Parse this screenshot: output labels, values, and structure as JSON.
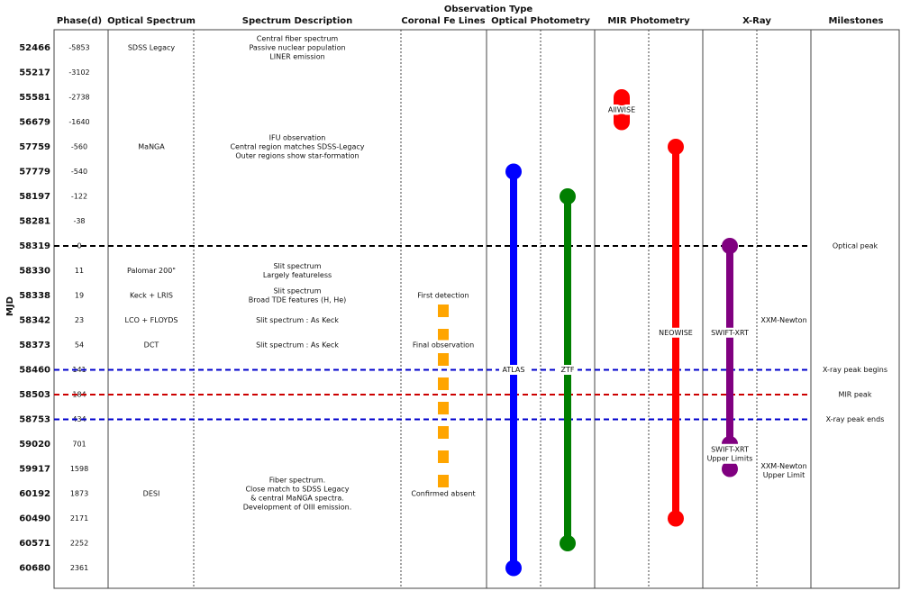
{
  "chart_data": {
    "type": "timeline",
    "header": {
      "group_title": "Observation Type",
      "columns": {
        "phase": "Phase(d)",
        "optical_spectrum": "Optical Spectrum",
        "spectrum_description": "Spectrum Description",
        "coronal": "Coronal Fe Lines",
        "optical_photometry": "Optical Photometry",
        "mir_photometry": "MIR Photometry",
        "xray": "X-Ray",
        "milestones": "Milestones"
      }
    },
    "ylabel": "MJD",
    "rows": [
      {
        "mjd": "52466",
        "phase": "-5853",
        "spectrum": "SDSS Legacy",
        "description": [
          "Central fiber spectrum",
          "Passive nuclear population",
          "LINER emission"
        ],
        "coronal": "",
        "milestone": ""
      },
      {
        "mjd": "55217",
        "phase": "-3102",
        "spectrum": "",
        "description": [],
        "coronal": "",
        "milestone": ""
      },
      {
        "mjd": "55581",
        "phase": "-2738",
        "spectrum": "",
        "description": [],
        "coronal": "",
        "milestone": ""
      },
      {
        "mjd": "56679",
        "phase": "-1640",
        "spectrum": "",
        "description": [],
        "coronal": "",
        "milestone": ""
      },
      {
        "mjd": "57759",
        "phase": "-560",
        "spectrum": "MaNGA",
        "description": [
          "IFU observation",
          "Central region matches SDSS-Legacy",
          "Outer regions show star-formation"
        ],
        "coronal": "",
        "milestone": ""
      },
      {
        "mjd": "57779",
        "phase": "-540",
        "spectrum": "",
        "description": [],
        "coronal": "",
        "milestone": ""
      },
      {
        "mjd": "58197",
        "phase": "-122",
        "spectrum": "",
        "description": [],
        "coronal": "",
        "milestone": ""
      },
      {
        "mjd": "58281",
        "phase": "-38",
        "spectrum": "",
        "description": [],
        "coronal": "",
        "milestone": ""
      },
      {
        "mjd": "58319",
        "phase": "0",
        "spectrum": "",
        "description": [],
        "coronal": "",
        "milestone": "Optical peak"
      },
      {
        "mjd": "58330",
        "phase": "11",
        "spectrum": "Palomar 200\"",
        "description": [
          "Slit spectrum",
          "Largely featureless"
        ],
        "coronal": "",
        "milestone": ""
      },
      {
        "mjd": "58338",
        "phase": "19",
        "spectrum": "Keck + LRIS",
        "description": [
          "Slit spectrum",
          "Broad TDE features (H, He)"
        ],
        "coronal": "First detection",
        "milestone": ""
      },
      {
        "mjd": "58342",
        "phase": "23",
        "spectrum": "LCO + FLOYDS",
        "description": [
          "Slit spectrum : As Keck"
        ],
        "coronal": "",
        "milestone": ""
      },
      {
        "mjd": "58373",
        "phase": "54",
        "spectrum": "DCT",
        "description": [
          "Slit spectrum : As Keck"
        ],
        "coronal": "Final observation",
        "milestone": ""
      },
      {
        "mjd": "58460",
        "phase": "141",
        "spectrum": "",
        "description": [],
        "coronal": "",
        "milestone": "X-ray peak begins"
      },
      {
        "mjd": "58503",
        "phase": "184",
        "spectrum": "",
        "description": [],
        "coronal": "",
        "milestone": "MIR peak"
      },
      {
        "mjd": "58753",
        "phase": "434",
        "spectrum": "",
        "description": [],
        "coronal": "",
        "milestone": "X-ray peak ends"
      },
      {
        "mjd": "59020",
        "phase": "701",
        "spectrum": "",
        "description": [],
        "coronal": "",
        "milestone": ""
      },
      {
        "mjd": "59917",
        "phase": "1598",
        "spectrum": "",
        "description": [],
        "coronal": "",
        "milestone": ""
      },
      {
        "mjd": "60192",
        "phase": "1873",
        "spectrum": "DESI",
        "description": [
          "Fiber spectrum.",
          "Close match to SDSS Legacy",
          "& central MaNGA spectra.",
          "Development of OIII emission."
        ],
        "coronal": "Confirmed absent",
        "milestone": ""
      },
      {
        "mjd": "60490",
        "phase": "2171",
        "spectrum": "",
        "description": [],
        "coronal": "",
        "milestone": ""
      },
      {
        "mjd": "60571",
        "phase": "2252",
        "spectrum": "",
        "description": [],
        "coronal": "",
        "milestone": ""
      },
      {
        "mjd": "60680",
        "phase": "2361",
        "spectrum": "",
        "description": [],
        "coronal": "",
        "milestone": ""
      }
    ],
    "series": [
      {
        "name": "AllWISE",
        "column": "mir_photometry",
        "start_mjd": "55581",
        "end_mjd": "56679",
        "color": "#ff0000",
        "style": "gap"
      },
      {
        "name": "NEOWISE",
        "column": "mir_photometry",
        "start_mjd": "57759",
        "end_mjd": "60490",
        "color": "#ff0000",
        "style": "solid"
      },
      {
        "name": "ATLAS",
        "column": "optical_photometry",
        "start_mjd": "57779",
        "end_mjd": "60680",
        "color": "#0000ff",
        "style": "solid"
      },
      {
        "name": "ZTF",
        "column": "optical_photometry",
        "start_mjd": "58197",
        "end_mjd": "60571",
        "color": "#007f00",
        "style": "solid"
      },
      {
        "name": "SWIFT-XRT",
        "column": "xray",
        "start_mjd": "58319",
        "end_mjd": "59020",
        "color": "#800080",
        "style": "solid"
      },
      {
        "name": "SWIFT-XRT Upper Limits",
        "column": "xray",
        "start_mjd": "59020",
        "end_mjd": "59917",
        "color": "#800080",
        "style": "solid"
      },
      {
        "name": "Coronal Fe Lines",
        "column": "coronal",
        "start_mjd": "58338",
        "end_mjd": "60192",
        "color": "#ffa500",
        "style": "dashed"
      }
    ],
    "series_labels": {
      "allwise": "AllWISE",
      "neowise": "NEOWISE",
      "atlas": "ATLAS",
      "ztf": "ZTF",
      "swift": "SWIFT-XRT",
      "swift_ul": [
        "SWIFT-XRT",
        "Upper Limits"
      ],
      "xmm": "XXM-Newton",
      "xmm_ul": [
        "XXM-Newton",
        "Upper Limit"
      ]
    },
    "reference_lines": [
      {
        "mjd": "58319",
        "label": "Optical peak",
        "color": "#000000"
      },
      {
        "mjd": "58460",
        "label": "X-ray peak begins",
        "color": "#0000cc"
      },
      {
        "mjd": "58503",
        "label": "MIR peak",
        "color": "#cc0000"
      },
      {
        "mjd": "58753",
        "label": "X-ray peak ends",
        "color": "#0000cc"
      }
    ]
  }
}
